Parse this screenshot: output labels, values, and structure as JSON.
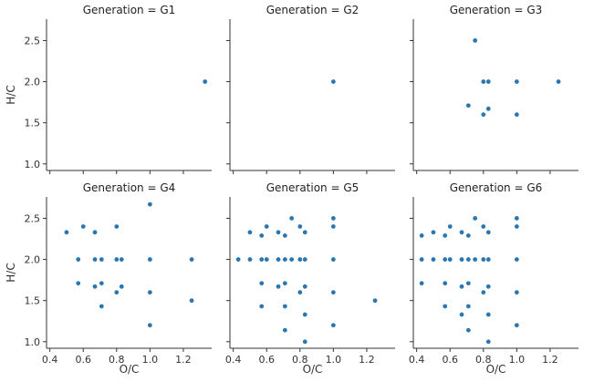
{
  "chart_data": {
    "type": "scatter",
    "title": "",
    "xlabel": "O/C",
    "ylabel": "H/C",
    "xlim": [
      0.38,
      1.37
    ],
    "ylim": [
      0.92,
      2.76
    ],
    "xticks": [
      0.4,
      0.6,
      0.8,
      1.0,
      1.2
    ],
    "xtick_labels": [
      "0.4",
      "0.6",
      "0.8",
      "1.0",
      "1.2"
    ],
    "yticks": [
      1.0,
      1.5,
      2.0,
      2.5
    ],
    "ytick_labels": [
      "1.0",
      "1.5",
      "2.0",
      "2.5"
    ],
    "grid": false,
    "facet_layout": "2 rows x 3 columns, shared axes",
    "colors": {
      "point": "#2a76b1"
    },
    "panels": [
      {
        "title": "Generation = G1",
        "x": [
          1.33
        ],
        "y": [
          2.0
        ]
      },
      {
        "title": "Generation = G2",
        "x": [
          1.0
        ],
        "y": [
          2.0
        ]
      },
      {
        "title": "Generation = G3",
        "x": [
          0.75,
          0.8,
          0.83,
          1.0,
          1.25,
          0.71,
          0.83,
          0.8,
          1.0
        ],
        "y": [
          2.5,
          2.0,
          2.0,
          2.0,
          2.0,
          1.71,
          1.67,
          1.6,
          1.6
        ]
      },
      {
        "title": "Generation = G4",
        "x": [
          1.0,
          0.5,
          0.6,
          0.67,
          0.8,
          0.57,
          0.67,
          0.71,
          0.8,
          0.83,
          1.0,
          1.25,
          0.57,
          0.71,
          0.83,
          0.67,
          0.8,
          1.0,
          1.25,
          0.71,
          1.0
        ],
        "y": [
          2.67,
          2.33,
          2.4,
          2.33,
          2.4,
          2.0,
          2.0,
          2.0,
          2.0,
          2.0,
          2.0,
          2.0,
          1.71,
          1.71,
          1.67,
          1.67,
          1.6,
          1.6,
          1.5,
          1.43,
          1.2
        ],
        "note": ""
      },
      {
        "title": "Generation = G5",
        "x": [
          0.75,
          1.0,
          0.5,
          0.6,
          0.67,
          0.8,
          0.83,
          1.0,
          0.57,
          0.71,
          0.43,
          0.5,
          0.57,
          0.6,
          0.67,
          0.71,
          0.75,
          0.8,
          0.83,
          1.0,
          0.57,
          0.71,
          0.83,
          0.67,
          0.8,
          1.0,
          1.25,
          0.57,
          0.71,
          0.83,
          1.0,
          0.71,
          0.83
        ],
        "y": [
          2.5,
          2.5,
          2.33,
          2.4,
          2.33,
          2.4,
          2.33,
          2.4,
          2.29,
          2.29,
          2.0,
          2.0,
          2.0,
          2.0,
          2.0,
          2.0,
          2.0,
          2.0,
          2.0,
          2.0,
          1.71,
          1.71,
          1.67,
          1.67,
          1.6,
          1.6,
          1.5,
          1.43,
          1.43,
          1.33,
          1.2,
          1.14,
          1.0
        ]
      },
      {
        "title": "Generation = G6",
        "x": [
          0.75,
          1.0,
          0.43,
          0.5,
          0.57,
          0.6,
          0.67,
          0.71,
          0.8,
          0.83,
          1.0,
          0.43,
          0.5,
          0.57,
          0.6,
          0.67,
          0.71,
          0.75,
          0.8,
          0.83,
          1.0,
          0.43,
          0.57,
          0.67,
          0.71,
          0.83,
          0.8,
          1.0,
          0.57,
          0.71,
          0.83,
          0.67,
          1.0,
          0.71,
          0.83
        ],
        "y": [
          2.5,
          2.5,
          2.29,
          2.33,
          2.29,
          2.4,
          2.33,
          2.29,
          2.4,
          2.33,
          2.4,
          2.0,
          2.0,
          2.0,
          2.0,
          2.0,
          2.0,
          2.0,
          2.0,
          2.0,
          2.0,
          1.71,
          1.71,
          1.67,
          1.71,
          1.67,
          1.6,
          1.6,
          1.43,
          1.43,
          1.33,
          1.33,
          1.2,
          1.14,
          1.0
        ]
      }
    ]
  }
}
